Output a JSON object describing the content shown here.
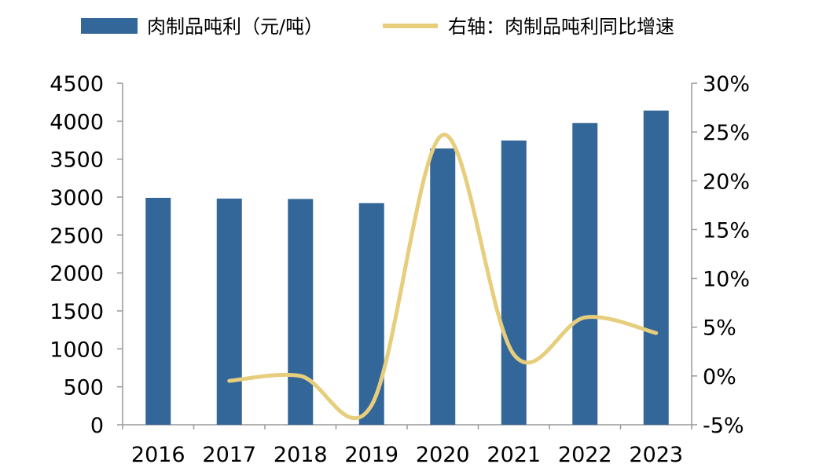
{
  "chart_data": {
    "type": "bar",
    "categories": [
      "2016",
      "2017",
      "2018",
      "2019",
      "2020",
      "2021",
      "2022",
      "2023"
    ],
    "series": [
      {
        "name": "肉制品吨利（元/吨）",
        "type": "bar",
        "axis": "left",
        "color": "#336699",
        "values": [
          2990,
          2980,
          2975,
          2920,
          3640,
          3745,
          3975,
          4140
        ]
      },
      {
        "name": "右轴：肉制品吨利同比增速",
        "type": "line",
        "axis": "right",
        "color": "#E6CE7D",
        "values": [
          null,
          -0.5,
          0.0,
          -3.0,
          24.7,
          2.2,
          6.0,
          4.4
        ]
      }
    ],
    "y_left": {
      "range": [
        0,
        4500
      ],
      "ticks": [
        "0",
        "500",
        "1000",
        "1500",
        "2000",
        "2500",
        "3000",
        "3500",
        "4000",
        "4500"
      ]
    },
    "y_right": {
      "range": [
        -5,
        30
      ],
      "unit": "%",
      "ticks": [
        "-5%",
        "0%",
        "5%",
        "10%",
        "15%",
        "20%",
        "25%",
        "30%"
      ]
    },
    "grid": false,
    "legend_position": "top",
    "axis_color": "#999999",
    "text_color": "#000000"
  }
}
